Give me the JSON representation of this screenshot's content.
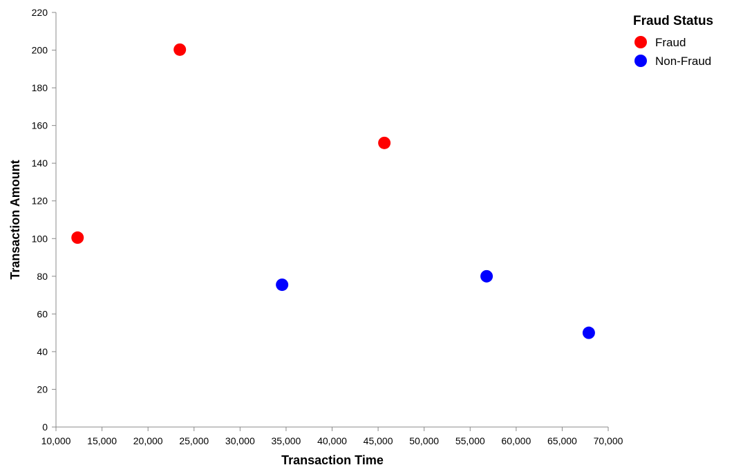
{
  "chart_data": {
    "type": "scatter",
    "title": "",
    "xlabel": "Transaction Time",
    "ylabel": "Transaction Amount",
    "xlim": [
      10000,
      70000
    ],
    "ylim": [
      0,
      220
    ],
    "x_ticks": [
      10000,
      15000,
      20000,
      25000,
      30000,
      35000,
      40000,
      45000,
      50000,
      55000,
      60000,
      65000,
      70000
    ],
    "x_tick_labels": [
      "10,000",
      "15,000",
      "20,000",
      "25,000",
      "30,000",
      "35,000",
      "40,000",
      "45,000",
      "50,000",
      "55,000",
      "60,000",
      "65,000",
      "70,000"
    ],
    "y_ticks": [
      0,
      20,
      40,
      60,
      80,
      100,
      120,
      140,
      160,
      180,
      200,
      220
    ],
    "y_tick_labels": [
      "0",
      "20",
      "40",
      "60",
      "80",
      "100",
      "120",
      "140",
      "160",
      "180",
      "200",
      "220"
    ],
    "grid": false,
    "legend": {
      "title": "Fraud Status",
      "placement": "top-right",
      "entries": [
        {
          "label": "Fraud",
          "color": "#ff0000"
        },
        {
          "label": "Non-Fraud",
          "color": "#0000ff"
        }
      ]
    },
    "series": [
      {
        "name": "Fraud",
        "color": "#ff0000",
        "points": [
          {
            "x": 12345,
            "y": 100.5
          },
          {
            "x": 23456,
            "y": 200.25
          },
          {
            "x": 45678,
            "y": 150.75
          }
        ]
      },
      {
        "name": "Non-Fraud",
        "color": "#0000ff",
        "points": [
          {
            "x": 34567,
            "y": 75.5
          },
          {
            "x": 56789,
            "y": 80.0
          },
          {
            "x": 67890,
            "y": 50.0
          }
        ]
      }
    ]
  }
}
